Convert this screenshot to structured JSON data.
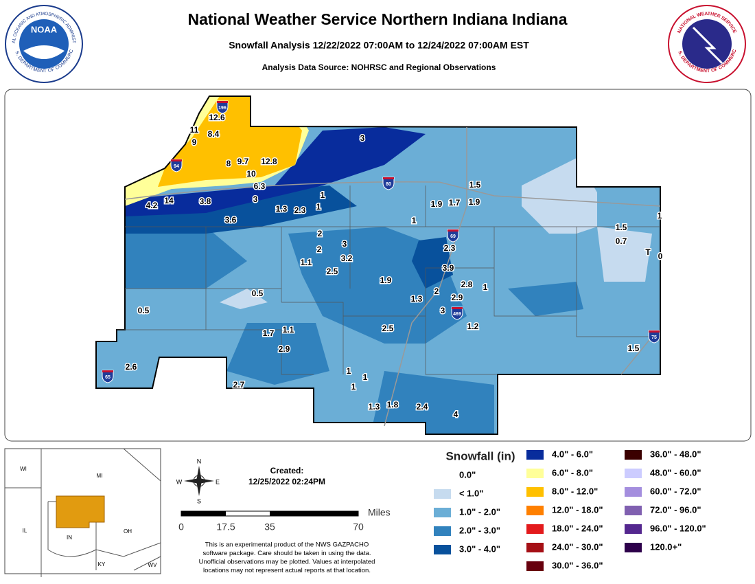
{
  "header": {
    "title": "National Weather Service Northern Indiana Indiana",
    "subtitle": "Snowfall Analysis 12/22/2022 07:00AM to 12/24/2022 07:00AM EST",
    "source": "Analysis Data Source: NOHRSC and Regional Observations"
  },
  "logos": {
    "noaa": "NOAA",
    "noaa_ring_top": "NATIONAL OCEANIC AND ATMOSPHERIC ADMINISTRATION",
    "noaa_ring_bottom": "U.S. DEPARTMENT OF COMMERCE",
    "nws_ring_top": "NATIONAL WEATHER SERVICE",
    "nws_ring_bottom": "U.S. DEPARTMENT OF COMMERCE"
  },
  "observations": [
    "12.6",
    "11",
    "8.4",
    "9",
    "8",
    "9.7",
    "12.8",
    "10",
    "3",
    "6.3",
    "1.5",
    "4.2",
    "14",
    "3.8",
    "3",
    "1",
    "1.3",
    "2.3",
    "1",
    "1.9",
    "1.7",
    "1.9",
    "3.6",
    "1",
    "1",
    "1.5",
    "0.7",
    "T",
    "0",
    "2",
    "2",
    "3",
    "2.3",
    "3.2",
    "1.1",
    "2.5",
    "3.9",
    "1.9",
    "2.8",
    "1",
    "0.5",
    "2",
    "1.3",
    "2.9",
    "0.5",
    "3",
    "1.2",
    "2.5",
    "1.7",
    "1.1",
    "2.9",
    "1.5",
    "2.6",
    "1",
    "1",
    "2.7",
    "1",
    "1.3",
    "1.8",
    "2.4",
    "4"
  ],
  "interstates": [
    "196",
    "94",
    "80",
    "69",
    "469",
    "65",
    "75"
  ],
  "inset": {
    "states": [
      "WI",
      "MI",
      "IL",
      "IN",
      "OH",
      "KY",
      "WV"
    ]
  },
  "compass": {
    "n": "N",
    "s": "S",
    "e": "E",
    "w": "W"
  },
  "created": {
    "label": "Created:",
    "date": "12/25/2022 02:24PM"
  },
  "scale": {
    "unit": "Miles",
    "ticks": [
      "0",
      "17.5",
      "35",
      "70"
    ]
  },
  "disclaimer": [
    "This is an experimental product of the NWS GAZPACHO",
    "software package. Care should be taken in using the data.",
    "Unofficial observations may be plotted. Values at interpolated",
    "locations may not represent actual reports at that location."
  ],
  "legend": {
    "title": "Snowfall (in)",
    "items": [
      {
        "label": "0.0\"",
        "color": "#ffffff"
      },
      {
        "label": "< 1.0\"",
        "color": "#c6dbef"
      },
      {
        "label": "1.0\" - 2.0\"",
        "color": "#6baed6"
      },
      {
        "label": "2.0\" - 3.0\"",
        "color": "#3182bd"
      },
      {
        "label": "3.0\" - 4.0\"",
        "color": "#08519c"
      },
      {
        "label": "4.0\" - 6.0\"",
        "color": "#082c9c"
      },
      {
        "label": "6.0\" - 8.0\"",
        "color": "#ffff99"
      },
      {
        "label": "8.0\" - 12.0\"",
        "color": "#ffc000"
      },
      {
        "label": "12.0\" - 18.0\"",
        "color": "#ff8000"
      },
      {
        "label": "18.0\" - 24.0\"",
        "color": "#e31a1c"
      },
      {
        "label": "24.0\" - 30.0\"",
        "color": "#a50f15"
      },
      {
        "label": "30.0\" - 36.0\"",
        "color": "#67000d"
      },
      {
        "label": "36.0\" - 48.0\"",
        "color": "#3b0000"
      },
      {
        "label": "48.0\" - 60.0\"",
        "color": "#ccccff"
      },
      {
        "label": "60.0\" - 72.0\"",
        "color": "#a48ede"
      },
      {
        "label": "72.0\" - 96.0\"",
        "color": "#8060b0"
      },
      {
        "label": "96.0\" - 120.0\"",
        "color": "#54278f"
      },
      {
        "label": "120.0+\"",
        "color": "#2d004b"
      }
    ]
  }
}
